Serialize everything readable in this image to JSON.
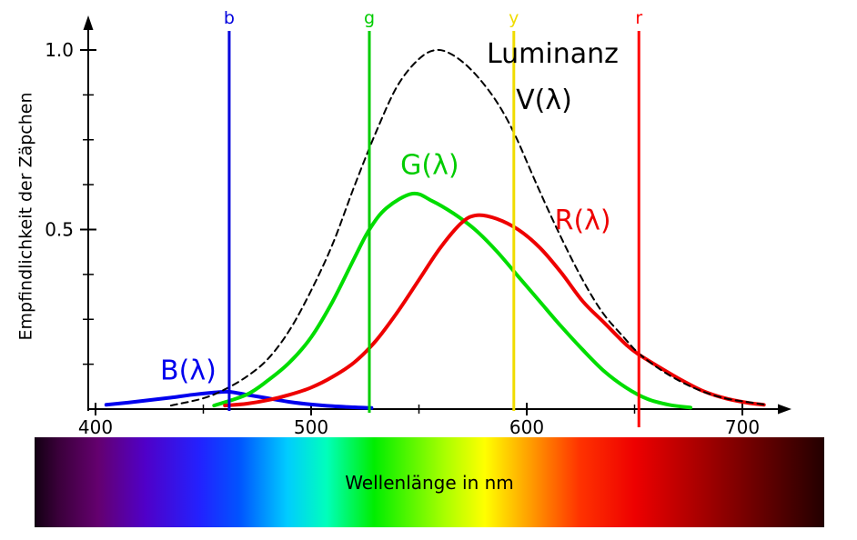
{
  "chart_data": {
    "type": "line",
    "title": "",
    "xlabel": "Wellenlänge in nm",
    "ylabel": "Empfindlichkeit der Zäpchen",
    "xlim": [
      400,
      710
    ],
    "ylim": [
      0,
      1.05
    ],
    "grid": false,
    "x_major_ticks": [
      400,
      500,
      600,
      700
    ],
    "x_minor_ticks": [
      450,
      550,
      650
    ],
    "y_major_ticks": [
      {
        "value": 1.0,
        "label": "1.0"
      },
      {
        "value": 0.5,
        "label": "0.5"
      }
    ],
    "y_minor_ticks": [
      0.125,
      0.25,
      0.375,
      0.625,
      0.75,
      0.875
    ],
    "series": [
      {
        "name": "B(λ)",
        "color": "#0000ee",
        "width": 4,
        "dash": null,
        "points": [
          [
            405,
            0.012
          ],
          [
            415,
            0.018
          ],
          [
            425,
            0.025
          ],
          [
            435,
            0.032
          ],
          [
            445,
            0.04
          ],
          [
            455,
            0.046
          ],
          [
            462,
            0.048
          ],
          [
            470,
            0.04
          ],
          [
            480,
            0.03
          ],
          [
            490,
            0.02
          ],
          [
            500,
            0.013
          ],
          [
            510,
            0.008
          ],
          [
            520,
            0.005
          ],
          [
            528,
            0.003
          ]
        ]
      },
      {
        "name": "G(λ)",
        "color": "#00dd00",
        "width": 4,
        "dash": null,
        "points": [
          [
            455,
            0.01
          ],
          [
            470,
            0.04
          ],
          [
            480,
            0.08
          ],
          [
            490,
            0.13
          ],
          [
            500,
            0.2
          ],
          [
            510,
            0.3
          ],
          [
            520,
            0.42
          ],
          [
            527,
            0.5
          ],
          [
            535,
            0.56
          ],
          [
            547,
            0.6
          ],
          [
            556,
            0.58
          ],
          [
            566,
            0.545
          ],
          [
            576,
            0.5
          ],
          [
            586,
            0.44
          ],
          [
            596,
            0.37
          ],
          [
            606,
            0.3
          ],
          [
            616,
            0.23
          ],
          [
            626,
            0.165
          ],
          [
            636,
            0.105
          ],
          [
            646,
            0.06
          ],
          [
            656,
            0.028
          ],
          [
            666,
            0.012
          ],
          [
            676,
            0.004
          ]
        ]
      },
      {
        "name": "R(λ)",
        "color": "#ee0000",
        "width": 4,
        "dash": null,
        "points": [
          [
            460,
            0.01
          ],
          [
            470,
            0.015
          ],
          [
            480,
            0.025
          ],
          [
            490,
            0.04
          ],
          [
            500,
            0.06
          ],
          [
            510,
            0.09
          ],
          [
            520,
            0.13
          ],
          [
            530,
            0.19
          ],
          [
            540,
            0.27
          ],
          [
            550,
            0.36
          ],
          [
            560,
            0.45
          ],
          [
            570,
            0.52
          ],
          [
            577,
            0.54
          ],
          [
            586,
            0.53
          ],
          [
            596,
            0.5
          ],
          [
            606,
            0.45
          ],
          [
            616,
            0.38
          ],
          [
            626,
            0.3
          ],
          [
            636,
            0.24
          ],
          [
            646,
            0.18
          ],
          [
            652,
            0.152
          ],
          [
            662,
            0.115
          ],
          [
            672,
            0.08
          ],
          [
            682,
            0.05
          ],
          [
            692,
            0.03
          ],
          [
            702,
            0.018
          ],
          [
            710,
            0.012
          ]
        ]
      },
      {
        "name": "Luminanz V(λ)",
        "color": "#000000",
        "width": 2,
        "dash": "7 5",
        "points": [
          [
            435,
            0.01
          ],
          [
            450,
            0.03
          ],
          [
            460,
            0.055
          ],
          [
            470,
            0.09
          ],
          [
            480,
            0.14
          ],
          [
            490,
            0.22
          ],
          [
            500,
            0.33
          ],
          [
            510,
            0.46
          ],
          [
            520,
            0.62
          ],
          [
            530,
            0.77
          ],
          [
            540,
            0.9
          ],
          [
            550,
            0.975
          ],
          [
            558,
            1.0
          ],
          [
            566,
            0.985
          ],
          [
            575,
            0.94
          ],
          [
            585,
            0.865
          ],
          [
            594,
            0.77
          ],
          [
            605,
            0.62
          ],
          [
            615,
            0.49
          ],
          [
            625,
            0.37
          ],
          [
            635,
            0.27
          ],
          [
            645,
            0.2
          ],
          [
            652,
            0.155
          ],
          [
            662,
            0.11
          ],
          [
            672,
            0.075
          ],
          [
            682,
            0.048
          ],
          [
            692,
            0.03
          ],
          [
            702,
            0.02
          ],
          [
            710,
            0.013
          ]
        ]
      }
    ],
    "primary_lines": [
      {
        "label": "b",
        "wavelength": 462,
        "color": "#0000dd",
        "overhang": 2
      },
      {
        "label": "g",
        "wavelength": 527,
        "color": "#00cc00",
        "overhang": 4
      },
      {
        "label": "y",
        "wavelength": 594,
        "color": "#f0dc00",
        "overhang": 2
      },
      {
        "label": "r",
        "wavelength": 652,
        "color": "#ff0000",
        "overhang": 20
      }
    ],
    "annotations": [
      {
        "text": "Luminanz",
        "color": "#000000",
        "x": 612,
        "y": 0.965
      },
      {
        "text": "V(λ)",
        "color": "#000000",
        "x": 608,
        "y": 0.835
      },
      {
        "text": "G(λ)",
        "color": "#00cc00",
        "x": 555,
        "y": 0.655
      },
      {
        "text": "R(λ)",
        "color": "#ee0000",
        "x": 626,
        "y": 0.5
      },
      {
        "text": "B(λ)",
        "color": "#0000ee",
        "x": 443,
        "y": 0.082
      }
    ],
    "spectrum_bar": {
      "stops": [
        {
          "pos": 0,
          "color": "#120012"
        },
        {
          "pos": 3,
          "color": "#3a003a"
        },
        {
          "pos": 8,
          "color": "#64006e"
        },
        {
          "pos": 14,
          "color": "#5000c8"
        },
        {
          "pos": 21,
          "color": "#2222ff"
        },
        {
          "pos": 26,
          "color": "#0055ff"
        },
        {
          "pos": 32,
          "color": "#00ccff"
        },
        {
          "pos": 37,
          "color": "#00ffbb"
        },
        {
          "pos": 43,
          "color": "#00ee00"
        },
        {
          "pos": 52,
          "color": "#aaff00"
        },
        {
          "pos": 57,
          "color": "#ffff00"
        },
        {
          "pos": 63,
          "color": "#ff9900"
        },
        {
          "pos": 69,
          "color": "#ff3300"
        },
        {
          "pos": 76,
          "color": "#ee0000"
        },
        {
          "pos": 86,
          "color": "#990000"
        },
        {
          "pos": 95,
          "color": "#4d0000"
        },
        {
          "pos": 100,
          "color": "#230000"
        }
      ]
    }
  }
}
